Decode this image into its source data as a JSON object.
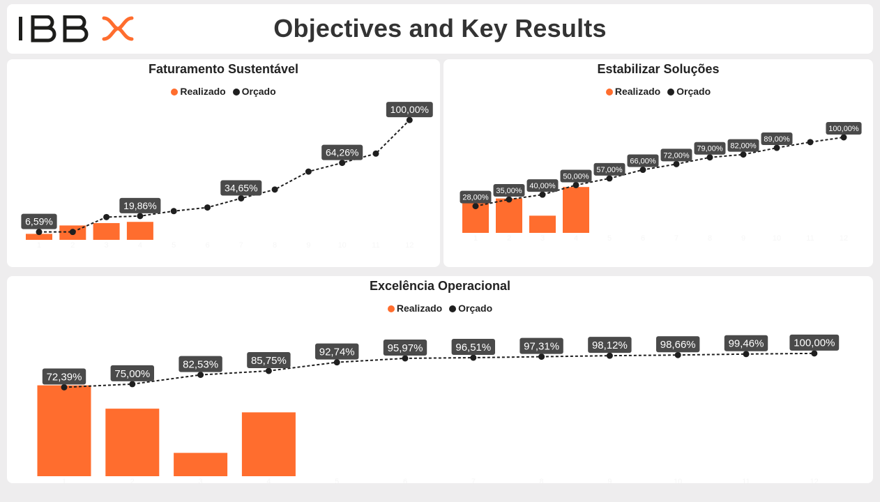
{
  "header": {
    "logo_text": "IBBX",
    "title": "Objectives and Key Results"
  },
  "colors": {
    "realizado": "#ff6d2e",
    "orcado": "#1f1f1f",
    "label_bg": "#4a4a4a",
    "logo_dark": "#1d1d1b",
    "logo_accent": "#ff6d2e"
  },
  "legend": {
    "realizado_label": "Realizado",
    "orcado_label": "Orçado"
  },
  "chart_data": [
    {
      "type": "bar",
      "title": "Faturamento Sustentável",
      "categories": [
        "1",
        "2",
        "3",
        "4",
        "5",
        "6",
        "7",
        "8",
        "9",
        "10",
        "11",
        "12"
      ],
      "ylim": [
        0,
        110
      ],
      "series": [
        {
          "name": "Realizado",
          "type": "bar",
          "values": [
            5,
            12,
            14,
            15,
            null,
            null,
            null,
            null,
            null,
            null,
            null,
            null
          ]
        },
        {
          "name": "Orçado",
          "type": "line",
          "values": [
            6.59,
            6.59,
            19.0,
            19.86,
            24.0,
            27.0,
            34.65,
            42.0,
            57.0,
            64.26,
            72.0,
            100.0
          ]
        }
      ],
      "data_labels": [
        {
          "index": 0,
          "text": "6,59%"
        },
        {
          "index": 3,
          "text": "19,86%"
        },
        {
          "index": 6,
          "text": "34,65%"
        },
        {
          "index": 9,
          "text": "64,26%"
        },
        {
          "index": 11,
          "text": "100,00%"
        }
      ]
    },
    {
      "type": "bar",
      "title": "Estabilizar Soluções",
      "categories": [
        "1",
        "2",
        "3",
        "4",
        "5",
        "6",
        "7",
        "8",
        "9",
        "10",
        "11",
        "12"
      ],
      "ylim": [
        0,
        135
      ],
      "series": [
        {
          "name": "Realizado",
          "type": "bar",
          "values": [
            38,
            36,
            18,
            48,
            null,
            null,
            null,
            null,
            null,
            null,
            null,
            null
          ]
        },
        {
          "name": "Orçado",
          "type": "line",
          "values": [
            28.0,
            35.0,
            40.0,
            50.0,
            57.0,
            66.0,
            72.0,
            79.0,
            82.0,
            89.0,
            95.0,
            100.0
          ]
        }
      ],
      "data_labels": [
        {
          "index": 0,
          "text": "28,00%"
        },
        {
          "index": 1,
          "text": "35,00%"
        },
        {
          "index": 2,
          "text": "40,00%"
        },
        {
          "index": 3,
          "text": "50,00%"
        },
        {
          "index": 4,
          "text": "57,00%"
        },
        {
          "index": 5,
          "text": "66,00%"
        },
        {
          "index": 6,
          "text": "72,00%"
        },
        {
          "index": 7,
          "text": "79,00%"
        },
        {
          "index": 8,
          "text": "82,00%"
        },
        {
          "index": 9,
          "text": "89,00%"
        },
        {
          "index": 11,
          "text": "100,00%"
        }
      ]
    },
    {
      "type": "bar",
      "title": "Excelência Operacional",
      "categories": [
        "1",
        "2",
        "3",
        "4",
        "5",
        "6",
        "7",
        "8",
        "9",
        "10",
        "11",
        "12"
      ],
      "ylim": [
        0,
        130
      ],
      "series": [
        {
          "name": "Realizado",
          "type": "bar",
          "values": [
            74,
            55,
            19,
            52,
            null,
            null,
            null,
            null,
            null,
            null,
            null,
            null
          ]
        },
        {
          "name": "Orçado",
          "type": "line",
          "values": [
            72.39,
            75.0,
            82.53,
            85.75,
            92.74,
            95.97,
            96.51,
            97.31,
            98.12,
            98.66,
            99.46,
            100.0
          ]
        }
      ],
      "data_labels": [
        {
          "index": 0,
          "text": "72,39%"
        },
        {
          "index": 1,
          "text": "75,00%"
        },
        {
          "index": 2,
          "text": "82,53%"
        },
        {
          "index": 3,
          "text": "85,75%"
        },
        {
          "index": 4,
          "text": "92,74%"
        },
        {
          "index": 5,
          "text": "95,97%"
        },
        {
          "index": 6,
          "text": "96,51%"
        },
        {
          "index": 7,
          "text": "97,31%"
        },
        {
          "index": 8,
          "text": "98,12%"
        },
        {
          "index": 9,
          "text": "98,66%"
        },
        {
          "index": 10,
          "text": "99,46%"
        },
        {
          "index": 11,
          "text": "100,00%"
        }
      ]
    }
  ]
}
